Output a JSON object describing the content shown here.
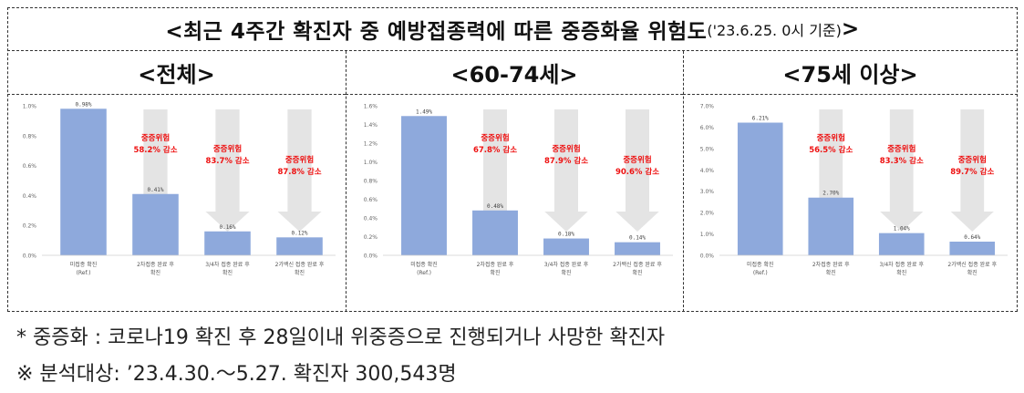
{
  "title": {
    "main": "<최근 4주간 확진자 중 예방접종력에 따른 중증화율 위험도",
    "note": "('23.6.25. 0시 기준)",
    "close": ">"
  },
  "panels": [
    {
      "header": "<전체>"
    },
    {
      "header": "<60-74세>"
    },
    {
      "header": "<75세 이상>"
    }
  ],
  "bar_color": "#8ea9dc",
  "arrow_color": "#e4e4e4",
  "risk_color": "#ee1111",
  "chart_data": [
    {
      "type": "bar",
      "categories": [
        "미접종 확진 (Ref.)",
        "2차접종 완료 후 확진",
        "3/4차 접종 완료 후 확진",
        "2가백신 접종 완료 후 확진"
      ],
      "values": [
        0.98,
        0.41,
        0.16,
        0.12
      ],
      "data_labels": [
        "0.98%",
        "0.41%",
        "0.16%",
        "0.12%"
      ],
      "ylim": [
        0,
        1.0
      ],
      "yticks": [
        "0.0%",
        "0.2%",
        "0.4%",
        "0.6%",
        "0.8%",
        "1.0%"
      ],
      "annotations": [
        {
          "bar": 1,
          "line1": "중증위험",
          "line2": "58.2% 감소"
        },
        {
          "bar": 2,
          "line1": "중증위험",
          "line2": "83.7% 감소"
        },
        {
          "bar": 3,
          "line1": "중증위험",
          "line2": "87.8% 감소"
        }
      ]
    },
    {
      "type": "bar",
      "categories": [
        "미접종 확진 (Ref.)",
        "2차접종 완료 후 확진",
        "3/4차 접종 완료 후 확진",
        "2가백신 접종 완료 후 확진"
      ],
      "values": [
        1.49,
        0.48,
        0.18,
        0.14
      ],
      "data_labels": [
        "1.49%",
        "0.48%",
        "0.18%",
        "0.14%"
      ],
      "ylim": [
        0,
        1.6
      ],
      "yticks": [
        "0.0%",
        "0.2%",
        "0.4%",
        "0.6%",
        "0.8%",
        "1.0%",
        "1.2%",
        "1.4%",
        "1.6%"
      ],
      "annotations": [
        {
          "bar": 1,
          "line1": "중증위험",
          "line2": "67.8% 감소"
        },
        {
          "bar": 2,
          "line1": "중증위험",
          "line2": "87.9% 감소"
        },
        {
          "bar": 3,
          "line1": "중증위험",
          "line2": "90.6% 감소"
        }
      ]
    },
    {
      "type": "bar",
      "categories": [
        "미접종 확진 (Ref.)",
        "2차접종 완료 후 확진",
        "3/4차 접종 완료 후 확진",
        "2가백신 접종 완료 후 확진"
      ],
      "values": [
        6.21,
        2.7,
        1.04,
        0.64
      ],
      "data_labels": [
        "6.21%",
        "2.70%",
        "1.04%",
        "0.64%"
      ],
      "ylim": [
        0,
        7.0
      ],
      "yticks": [
        "0.0%",
        "1.0%",
        "2.0%",
        "3.0%",
        "4.0%",
        "5.0%",
        "6.0%",
        "7.0%"
      ],
      "annotations": [
        {
          "bar": 1,
          "line1": "중증위험",
          "line2": "56.5% 감소"
        },
        {
          "bar": 2,
          "line1": "중증위험",
          "line2": "83.3% 감소"
        },
        {
          "bar": 3,
          "line1": "중증위험",
          "line2": "89.7% 감소"
        }
      ]
    }
  ],
  "footnotes": [
    "* 중증화 : 코로나19 확진 후 28일이내 위중증으로 진행되거나 사망한 확진자",
    "※ 분석대상: ’23.4.30.～5.27. 확진자 300,543명"
  ]
}
